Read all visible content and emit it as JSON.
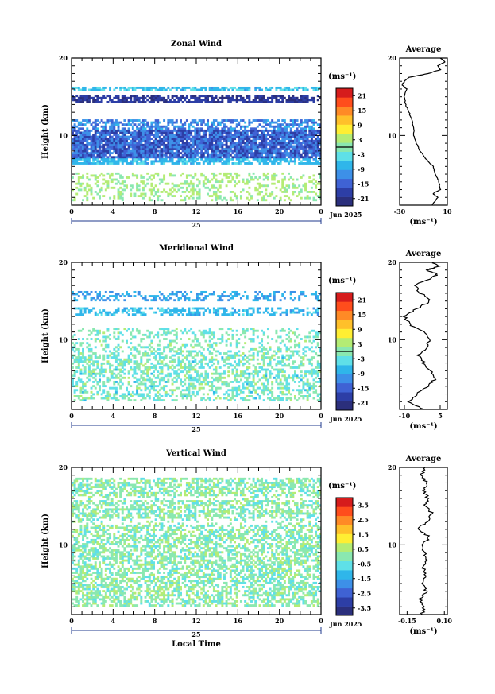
{
  "colorbar_colors": [
    "#2b2f7c",
    "#2d3ea6",
    "#3f62d4",
    "#3d90e8",
    "#2fb6ea",
    "#5fe0e8",
    "#8ae8b0",
    "#b4ec74",
    "#ffee33",
    "#ffc02a",
    "#ff8a26",
    "#ff4d1c",
    "#d61c1c"
  ],
  "contour_color": "#000000",
  "date_label": "Jun 2025",
  "day_label": "25",
  "x_axis_label": "Local Time",
  "y_axis_label": "Height (km)",
  "average_title": "Average",
  "unit_label": "(ms⁻¹)",
  "panels": [
    {
      "id": "zonal",
      "title": "Zonal Wind",
      "cb_ticks": [
        "21",
        "15",
        "9",
        "3",
        "-3",
        "-9",
        "-15",
        "-21"
      ],
      "avg_xticks": [
        "-30",
        "10"
      ]
    },
    {
      "id": "meridional",
      "title": "Meridional Wind",
      "cb_ticks": [
        "21",
        "15",
        "9",
        "3",
        "-3",
        "-9",
        "-15",
        "-21"
      ],
      "avg_xticks": [
        "-10",
        "5"
      ]
    },
    {
      "id": "vertical",
      "title": "Vertical Wind",
      "cb_ticks": [
        "3.5",
        "2.5",
        "1.5",
        "0.5",
        "-0.5",
        "-1.5",
        "-2.5",
        "-3.5"
      ],
      "avg_xticks": [
        "-0.15",
        "0.10"
      ]
    }
  ],
  "chart_data": [
    {
      "type": "heatmap",
      "title": "Zonal Wind",
      "xlabel": "",
      "ylabel": "Height (km)",
      "x_ticks": [
        "0",
        "4",
        "8",
        "12",
        "16",
        "20",
        "0"
      ],
      "y_ticks": [
        "10",
        "20"
      ],
      "xlim": [
        0,
        24
      ],
      "ylim": [
        1,
        20
      ],
      "colorbar": {
        "label": "(ms⁻¹)",
        "ticks": [
          21,
          15,
          9,
          3,
          -3,
          -9,
          -15,
          -21
        ],
        "range": [
          -24,
          24
        ]
      },
      "profile": [
        [
          1,
          -3
        ],
        [
          2,
          2
        ],
        [
          2.5,
          -2
        ],
        [
          3,
          4
        ],
        [
          4,
          3
        ],
        [
          5,
          0
        ],
        [
          6,
          -2
        ],
        [
          7,
          -8
        ],
        [
          8,
          -13
        ],
        [
          9,
          -16
        ],
        [
          10,
          -18
        ],
        [
          11,
          -18
        ],
        [
          12,
          -20
        ],
        [
          13,
          -22
        ],
        [
          14,
          -25
        ],
        [
          15,
          -26
        ],
        [
          16,
          -24
        ],
        [
          16.5,
          -28
        ],
        [
          17,
          -26
        ],
        [
          17.5,
          -22
        ],
        [
          18,
          -6
        ],
        [
          18.5,
          4
        ],
        [
          19,
          2
        ],
        [
          19.5,
          8
        ],
        [
          20,
          4
        ]
      ],
      "profile_xlim": [
        -30,
        10
      ],
      "profile_xticks": [
        -30,
        10
      ]
    },
    {
      "type": "heatmap",
      "title": "Meridional Wind",
      "xlabel": "",
      "ylabel": "Height (km)",
      "x_ticks": [
        "0",
        "4",
        "8",
        "12",
        "16",
        "20",
        "0"
      ],
      "y_ticks": [
        "10",
        "20"
      ],
      "xlim": [
        0,
        24
      ],
      "ylim": [
        1,
        20
      ],
      "colorbar": {
        "label": "(ms⁻¹)",
        "ticks": [
          21,
          15,
          9,
          3,
          -3,
          -9,
          -15,
          -21
        ],
        "range": [
          -24,
          24
        ]
      },
      "profile": [
        [
          1,
          -2
        ],
        [
          2,
          -8
        ],
        [
          3,
          -5
        ],
        [
          4,
          0
        ],
        [
          5,
          3
        ],
        [
          6,
          1
        ],
        [
          7,
          -2
        ],
        [
          8,
          -4
        ],
        [
          9,
          -1
        ],
        [
          10,
          1
        ],
        [
          11,
          -2
        ],
        [
          12,
          -8
        ],
        [
          13,
          -10
        ],
        [
          14,
          -5
        ],
        [
          15,
          1
        ],
        [
          16,
          -3
        ],
        [
          17,
          -6
        ],
        [
          18,
          2
        ],
        [
          18.5,
          4
        ],
        [
          19,
          -1
        ],
        [
          19.5,
          5
        ],
        [
          20,
          2
        ]
      ],
      "profile_xlim": [
        -12,
        8
      ],
      "profile_xticks": [
        -10,
        5
      ]
    },
    {
      "type": "heatmap",
      "title": "Vertical Wind",
      "xlabel": "Local Time",
      "ylabel": "Height (km)",
      "x_ticks": [
        "0",
        "4",
        "8",
        "12",
        "16",
        "20",
        "0"
      ],
      "y_ticks": [
        "10",
        "20"
      ],
      "xlim": [
        0,
        24
      ],
      "ylim": [
        1,
        20
      ],
      "colorbar": {
        "label": "(ms⁻¹)",
        "ticks": [
          3.5,
          2.5,
          1.5,
          0.5,
          -0.5,
          -1.5,
          -2.5,
          -3.5
        ],
        "range": [
          -4,
          4
        ]
      },
      "profile": [
        [
          1,
          -0.05
        ],
        [
          2,
          -0.04
        ],
        [
          3,
          -0.06
        ],
        [
          4,
          -0.02
        ],
        [
          5,
          -0.05
        ],
        [
          6,
          -0.03
        ],
        [
          7,
          -0.04
        ],
        [
          8,
          -0.02
        ],
        [
          9,
          -0.03
        ],
        [
          10,
          -0.05
        ],
        [
          11,
          0.0
        ],
        [
          12,
          -0.08
        ],
        [
          13,
          -0.02
        ],
        [
          14,
          0.02
        ],
        [
          15,
          -0.03
        ],
        [
          16,
          -0.01
        ],
        [
          17,
          -0.04
        ],
        [
          18,
          -0.02
        ],
        [
          19,
          -0.05
        ],
        [
          20,
          -0.03
        ]
      ],
      "profile_xlim": [
        -0.2,
        0.12
      ],
      "profile_xticks": [
        -0.15,
        0.1
      ]
    }
  ]
}
